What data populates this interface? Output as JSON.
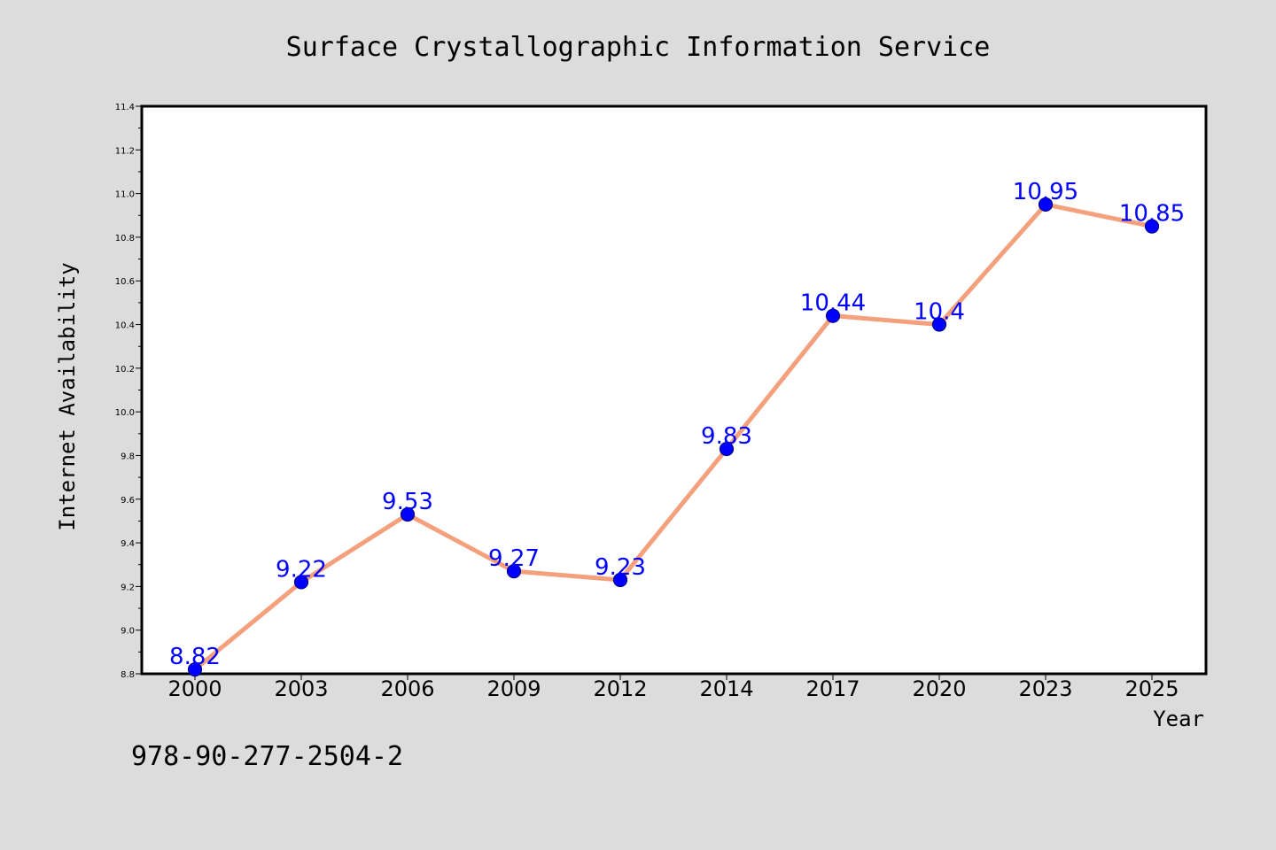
{
  "chart_data": {
    "type": "line",
    "title": "Surface Crystallographic Information Service",
    "xlabel": "Year",
    "ylabel": "Internet Availability",
    "categories": [
      "2000",
      "2003",
      "2006",
      "2009",
      "2012",
      "2014",
      "2017",
      "2020",
      "2023",
      "2025"
    ],
    "series": [
      {
        "values": [
          8.82,
          9.22,
          9.53,
          9.27,
          9.23,
          9.83,
          10.44,
          10.4,
          10.95,
          10.85
        ]
      }
    ],
    "data_labels": [
      "8.82",
      "9.22",
      "9.53",
      "9.27",
      "9.23",
      "9.83",
      "10.44",
      "10.4",
      "10.95",
      "10.85"
    ],
    "ylim": [
      8.8,
      11.4
    ],
    "yticks": [
      "8.8",
      "9.0",
      "9.2",
      "9.4",
      "9.6",
      "9.8",
      "10.0",
      "10.2",
      "10.4",
      "10.6",
      "10.8",
      "11.0",
      "11.2",
      "11.4"
    ],
    "grid": false,
    "legend": "none",
    "colors": {
      "line": "#f4a07c",
      "marker": "#0000ff",
      "marker_edge": "#00008b",
      "label": "#0000ff",
      "background": "#dcdcdc",
      "plot_background": "#ffffff"
    }
  },
  "footer": {
    "isbn": "978-90-277-2504-2"
  }
}
